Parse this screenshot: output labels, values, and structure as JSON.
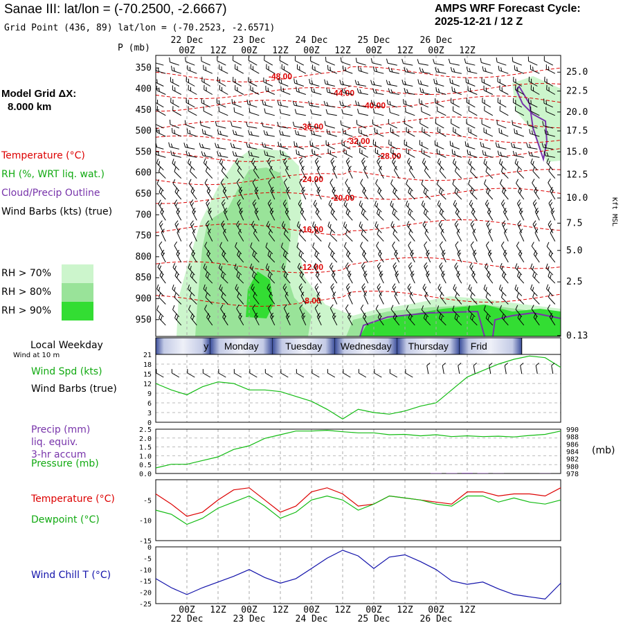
{
  "header": {
    "title": "Sanae III:  lat/lon = (-70.2500, -2.6667)",
    "subtitle": "Grid Point (436, 89) lat/lon = (-70.2523, -2.6571)",
    "cycle_line1": "AMPS WRF Forecast Cycle:",
    "cycle_line2": "2025-12-21 / 12  Z"
  },
  "model": {
    "label": "Model Grid ΔX:",
    "value": "8.000 km"
  },
  "legend": {
    "temperature": "Temperature (°C)",
    "rh": "RH (%, WRT liq. wat.)",
    "cloud": "Cloud/Precip Outline",
    "wind": "Wind Barbs (kts) (true)",
    "rh70": "RH > 70%",
    "rh80": "RH > 80%",
    "rh90": "RH > 90%"
  },
  "colors": {
    "temp": "#dd0000",
    "rh70": "#ccf5cc",
    "rh80": "#99e399",
    "rh90": "#33dd33",
    "cloud": "#7733aa",
    "wind_chill": "#1111aa",
    "dewpoint": "#11bb11",
    "pressure": "#11bb11"
  },
  "time_axis": {
    "top_hours": [
      "00Z",
      "12Z",
      "00Z",
      "12Z",
      "00Z",
      "12Z",
      "00Z",
      "12Z",
      "00Z",
      "12Z"
    ],
    "top_dates": [
      "22 Dec",
      "23 Dec",
      "24 Dec",
      "25 Dec",
      "26 Dec"
    ],
    "weekdays": [
      "Sunday",
      "Monday",
      "Tuesday",
      "Wednesday",
      "Thursday",
      "Friday"
    ],
    "weekday_visible": [
      "y",
      "Monday",
      "Tuesday",
      "Wednesday",
      "Thursday",
      "Frid"
    ],
    "weekday_title": "Local Weekday",
    "wind_at": "Wind at 10 m"
  },
  "chart_data": [
    {
      "id": "profile",
      "type": "heatmap",
      "ylabel": "P (mb)",
      "pressure_levels": [
        "350",
        "400",
        "450",
        "500",
        "550",
        "600",
        "650",
        "700",
        "750",
        "800",
        "850",
        "900",
        "950"
      ],
      "kft_ticks": [
        "25.0",
        "22.5",
        "20.0",
        "17.5",
        "15.0",
        "12.5",
        "10.0",
        "7.5",
        "5.0",
        "2.5",
        "0.13"
      ],
      "kft_label": "Kft MSL",
      "temperature_isotherms": [
        {
          "label": "-48.00",
          "pressure": 370,
          "at_hour": 36
        },
        {
          "label": "-44.00",
          "pressure": 410,
          "at_hour": 60
        },
        {
          "label": "-40.00",
          "pressure": 440,
          "at_hour": 72
        },
        {
          "label": "-36.00",
          "pressure": 490,
          "at_hour": 48
        },
        {
          "label": "-32.00",
          "pressure": 525,
          "at_hour": 66
        },
        {
          "label": "-28.00",
          "pressure": 560,
          "at_hour": 78
        },
        {
          "label": "-24.00",
          "pressure": 615,
          "at_hour": 48
        },
        {
          "label": "-20.00",
          "pressure": 660,
          "at_hour": 60
        },
        {
          "label": "-16.00",
          "pressure": 735,
          "at_hour": 48
        },
        {
          "label": "-12.00",
          "pressure": 825,
          "at_hour": 48
        },
        {
          "label": "-8.00",
          "pressure": 905,
          "at_hour": 48
        }
      ]
    },
    {
      "id": "wind",
      "type": "line",
      "title": "Wind Spd (kts)",
      "subtitle": "Wind Barbs (true)",
      "ylim": [
        0,
        21
      ],
      "y_ticks": [
        "21",
        "18",
        "15",
        "12",
        "9",
        "6",
        "3",
        "0"
      ],
      "hours": [
        -12,
        -6,
        0,
        6,
        12,
        18,
        24,
        30,
        36,
        42,
        48,
        54,
        60,
        66,
        72,
        78,
        84,
        90,
        96,
        102,
        108,
        114,
        120,
        126,
        132,
        138,
        144
      ],
      "series": [
        {
          "name": "Wind Spd (kts)",
          "values": [
            12,
            10,
            8.5,
            11,
            12.5,
            12,
            10,
            10,
            9.5,
            8,
            6.5,
            4,
            1,
            4,
            3,
            2.5,
            3.5,
            5,
            6,
            10,
            14,
            16,
            18,
            19.5,
            20.5,
            20,
            17
          ]
        }
      ]
    },
    {
      "id": "precip_pressure",
      "type": "line",
      "title_lines": [
        "Precip (mm)",
        "liq. equiv.",
        "3-hr accum"
      ],
      "pressure_label": "Pressure (mb)",
      "left_ticks": [
        "2.5",
        "2.0",
        "1.5",
        "1.0",
        "0.5",
        "0.0"
      ],
      "right_ticks": [
        "990",
        "988",
        "986",
        "984",
        "982",
        "980",
        "978"
      ],
      "right_unit": "(mb)",
      "ylim_precip": [
        0,
        2.5
      ],
      "ylim_pressure": [
        978,
        990
      ],
      "hours": [
        -12,
        -6,
        0,
        6,
        12,
        18,
        24,
        30,
        36,
        42,
        48,
        54,
        60,
        66,
        72,
        78,
        84,
        90,
        96,
        102,
        108,
        114,
        120,
        126,
        132,
        138,
        144
      ],
      "series": [
        {
          "name": "Pressure (mb)",
          "values": [
            979.5,
            980.5,
            980.5,
            981.5,
            982.5,
            984.5,
            985.5,
            987.5,
            988.5,
            989.5,
            989.5,
            989.7,
            989.3,
            989,
            989,
            988.5,
            988.6,
            988.2,
            988.5,
            988,
            988.2,
            988,
            988.1,
            987.9,
            988.3,
            988.6,
            989.5
          ]
        },
        {
          "name": "Precip (mm)",
          "values": [
            0,
            0,
            0,
            0,
            0,
            0,
            0,
            0,
            0,
            0,
            0,
            0,
            0,
            0,
            0,
            0,
            0,
            0,
            0.02,
            0.02,
            0.03,
            0.02,
            0.01,
            0,
            0,
            0.01,
            0
          ]
        }
      ]
    },
    {
      "id": "temperature",
      "type": "line",
      "ylim": [
        -15,
        0
      ],
      "y_ticks": [
        "-5",
        "-10",
        "-15"
      ],
      "hours": [
        -12,
        -6,
        0,
        6,
        12,
        18,
        24,
        30,
        36,
        42,
        48,
        54,
        60,
        66,
        72,
        78,
        84,
        90,
        96,
        102,
        108,
        114,
        120,
        126,
        132,
        138,
        144
      ],
      "series": [
        {
          "name": "Temperature (°C)",
          "values": [
            -3.5,
            -6,
            -9,
            -8,
            -5,
            -2.5,
            -2,
            -5,
            -8,
            -6.5,
            -3,
            -2,
            -3.5,
            -6.5,
            -6,
            -4,
            -4.5,
            -5,
            -5.5,
            -6,
            -3,
            -3,
            -4,
            -3.5,
            -3.5,
            -4,
            -2
          ]
        },
        {
          "name": "Dewpoint (°C)",
          "values": [
            -7.5,
            -8.5,
            -11,
            -9.5,
            -7,
            -5.5,
            -4,
            -6.5,
            -9.5,
            -8,
            -5,
            -4,
            -5,
            -7.5,
            -6,
            -4,
            -4.5,
            -5,
            -6,
            -6.5,
            -4,
            -4,
            -5.5,
            -4.5,
            -5.5,
            -6,
            -5
          ]
        }
      ]
    },
    {
      "id": "wind_chill",
      "type": "line",
      "title": "Wind Chill T (°C)",
      "ylim": [
        -25,
        0
      ],
      "y_ticks": [
        "0",
        "-5",
        "-10",
        "-15",
        "-20",
        "-25"
      ],
      "hours": [
        -12,
        -6,
        0,
        6,
        12,
        18,
        24,
        30,
        36,
        42,
        48,
        54,
        60,
        66,
        72,
        78,
        84,
        90,
        96,
        102,
        108,
        114,
        120,
        126,
        132,
        138,
        144
      ],
      "series": [
        {
          "name": "Wind Chill T (°C)",
          "values": [
            -14,
            -18,
            -21,
            -18,
            -15.5,
            -13,
            -10,
            -13.5,
            -16,
            -14,
            -9.5,
            -5,
            -1.5,
            -4,
            -9.5,
            -4.5,
            -3.5,
            -6.5,
            -10,
            -15,
            -16.5,
            -15.5,
            -18.5,
            -21,
            -22,
            -23,
            -16
          ]
        }
      ]
    }
  ]
}
